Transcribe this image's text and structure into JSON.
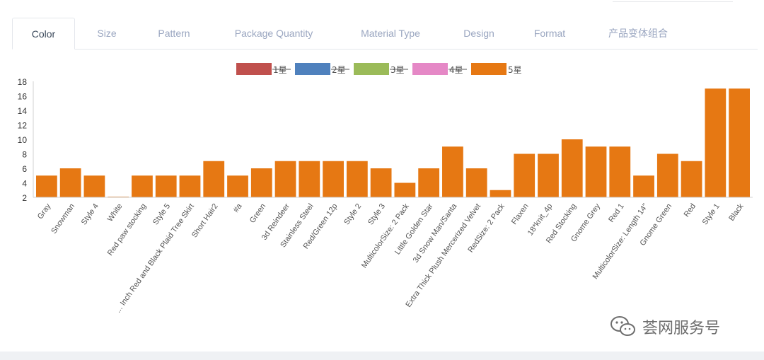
{
  "tabs": [
    {
      "label": "Color",
      "active": true
    },
    {
      "label": "Size",
      "active": false
    },
    {
      "label": "Pattern",
      "active": false
    },
    {
      "label": "Package Quantity",
      "active": false
    },
    {
      "label": "Material Type",
      "active": false
    },
    {
      "label": "Design",
      "active": false
    },
    {
      "label": "Format",
      "active": false
    },
    {
      "label": "产品变体组合",
      "active": false
    }
  ],
  "watermark": {
    "text": "荟网服务号",
    "icon": "wechat-icon"
  },
  "chart_data": {
    "type": "bar",
    "legend_position": "top-center",
    "legend": [
      {
        "name": "1星",
        "color": "#c0504d",
        "hidden": true
      },
      {
        "name": "2星",
        "color": "#4f81bd",
        "hidden": true
      },
      {
        "name": "3星",
        "color": "#9bbb59",
        "hidden": true
      },
      {
        "name": "4星",
        "color": "#e588c6",
        "hidden": true
      },
      {
        "name": "5星",
        "color": "#e67813",
        "hidden": false
      }
    ],
    "categories": [
      "Gray",
      "Snowman",
      "Style 4",
      "White",
      "Red paw stocking",
      "Style 5",
      "... Inch Red and Black Plaid Tree Skirt",
      "Short Hair2",
      "#a",
      "Green",
      "3d Reindeer",
      "Stainless Steel",
      "Red/Green 12p",
      "Style 2",
      "Style 3",
      "MulticolorSize: 2 Pack",
      "Little Golden Star",
      "3d Snow Man/Santa",
      "Extra Thick Plush Mercerized Velvet",
      "RedSize: 2 Pack",
      "Flaxen",
      "18*knit_4p",
      "Red Stocking",
      "Gnome Grey",
      "Red 1",
      "MulticolorSize: Length 14\"",
      "Gnome Green",
      "Red",
      "Style 1",
      "Black"
    ],
    "series": [
      {
        "name": "5星",
        "values": [
          5,
          6,
          5,
          2,
          5,
          5,
          5,
          7,
          5,
          6,
          7,
          7,
          7,
          7,
          6,
          4,
          6,
          9,
          6,
          3,
          8,
          8,
          10,
          9,
          9,
          5,
          8,
          7,
          17,
          17
        ]
      }
    ],
    "yticks": [
      2,
      4,
      6,
      8,
      10,
      12,
      14,
      16,
      18
    ],
    "ylim": [
      2,
      18
    ],
    "grid": false
  }
}
